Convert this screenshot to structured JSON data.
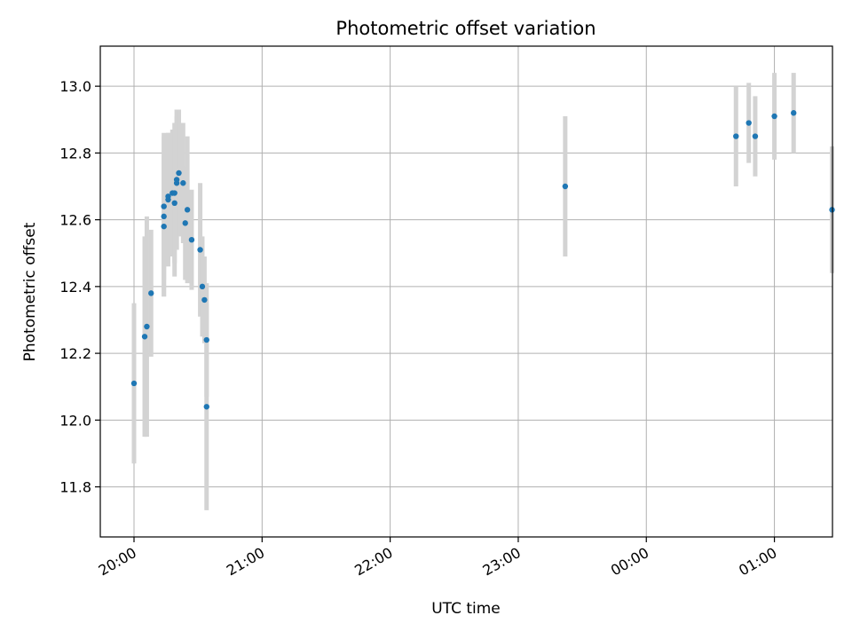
{
  "chart_data": {
    "type": "scatter",
    "title": "Photometric offset variation",
    "xlabel": "UTC time",
    "ylabel": "Photometric offset",
    "x_axis": {
      "kind": "time",
      "min": "20:00",
      "max": "25:43",
      "ticks": [
        {
          "value": "20:00",
          "label": "20:00"
        },
        {
          "value": "21:00",
          "label": "21:00"
        },
        {
          "value": "22:00",
          "label": "22:00"
        },
        {
          "value": "23:00",
          "label": "23:00"
        },
        {
          "value": "24:00",
          "label": "00:00"
        },
        {
          "value": "25:00",
          "label": "01:00"
        }
      ]
    },
    "ylim": [
      11.65,
      13.12
    ],
    "yticks": [
      11.8,
      12.0,
      12.2,
      12.4,
      12.6,
      12.8,
      13.0
    ],
    "ytick_labels": [
      "11.8",
      "12.0",
      "12.2",
      "12.4",
      "12.6",
      "12.8",
      "13.0"
    ],
    "grid": true,
    "series": [
      {
        "color": "#1f77b4",
        "error_color": "#d3d3d3",
        "points": [
          {
            "time": "20:00",
            "y": 12.11,
            "err": 0.24
          },
          {
            "time": "20:05",
            "y": 12.25,
            "err": 0.3
          },
          {
            "time": "20:06",
            "y": 12.28,
            "err": 0.33
          },
          {
            "time": "20:08",
            "y": 12.38,
            "err": 0.19
          },
          {
            "time": "20:14",
            "y": 12.58,
            "err": 0.21
          },
          {
            "time": "20:14",
            "y": 12.61,
            "err": 0.24
          },
          {
            "time": "20:14",
            "y": 12.64,
            "err": 0.22
          },
          {
            "time": "20:16",
            "y": 12.66,
            "err": 0.2
          },
          {
            "time": "20:16",
            "y": 12.67,
            "err": 0.19
          },
          {
            "time": "20:18",
            "y": 12.68,
            "err": 0.19
          },
          {
            "time": "20:19",
            "y": 12.68,
            "err": 0.21
          },
          {
            "time": "20:19",
            "y": 12.65,
            "err": 0.22
          },
          {
            "time": "20:20",
            "y": 12.71,
            "err": 0.2
          },
          {
            "time": "20:20",
            "y": 12.72,
            "err": 0.21
          },
          {
            "time": "20:21",
            "y": 12.74,
            "err": 0.19
          },
          {
            "time": "20:23",
            "y": 12.71,
            "err": 0.18
          },
          {
            "time": "20:24",
            "y": 12.59,
            "err": 0.17
          },
          {
            "time": "20:25",
            "y": 12.63,
            "err": 0.22
          },
          {
            "time": "20:27",
            "y": 12.54,
            "err": 0.15
          },
          {
            "time": "20:31",
            "y": 12.51,
            "err": 0.2
          },
          {
            "time": "20:32",
            "y": 12.4,
            "err": 0.15
          },
          {
            "time": "20:33",
            "y": 12.36,
            "err": 0.13
          },
          {
            "time": "20:34",
            "y": 12.24,
            "err": 0.17
          },
          {
            "time": "20:34",
            "y": 12.04,
            "err": 0.31
          },
          {
            "time": "23:22",
            "y": 12.7,
            "err": 0.21
          },
          {
            "time": "24:42",
            "y": 12.85,
            "err": 0.15
          },
          {
            "time": "24:48",
            "y": 12.89,
            "err": 0.12
          },
          {
            "time": "24:51",
            "y": 12.85,
            "err": 0.12
          },
          {
            "time": "25:00",
            "y": 12.91,
            "err": 0.13
          },
          {
            "time": "25:09",
            "y": 12.92,
            "err": 0.12
          },
          {
            "time": "25:27",
            "y": 12.63,
            "err": 0.19
          }
        ]
      }
    ]
  }
}
